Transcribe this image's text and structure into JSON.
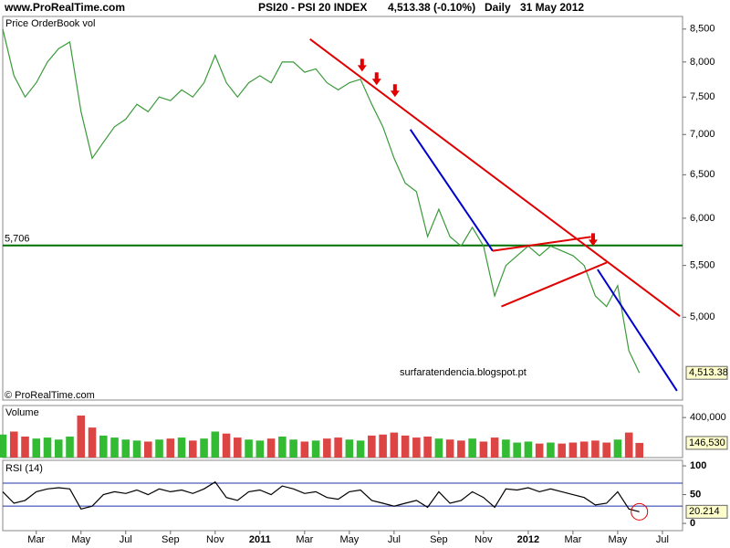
{
  "header": {
    "site": "www.ProRealTime.com",
    "title": "PSI20 - PSI 20 INDEX",
    "quote": "4,513.38 (-0.10%)",
    "period": "Daily",
    "date": "31 May 2012"
  },
  "chart_data": [
    {
      "type": "line",
      "label": "Price OrderBook vol",
      "watermark": "© ProRealTime.com",
      "annotation": "surfaratendencia.blogspot.pt",
      "log_scale": true,
      "color": "#3a9a3a",
      "x": [
        0.5,
        1,
        1.5,
        2,
        2.5,
        3,
        3.5,
        4,
        4.5,
        5,
        5.5,
        6,
        6.5,
        7,
        7.5,
        8,
        8.5,
        9,
        9.5,
        10,
        10.5,
        11,
        11.5,
        12,
        12.5,
        13,
        13.5,
        14,
        14.5,
        15,
        15.5,
        16,
        16.5,
        17,
        17.5,
        18,
        18.5,
        19,
        19.5,
        20,
        20.5,
        21,
        21.5,
        22,
        22.5,
        23,
        23.5,
        24,
        24.5,
        25,
        25.5,
        26,
        26.5,
        27,
        27.5,
        28,
        28.5,
        28.97
      ],
      "values": [
        8500,
        7800,
        7500,
        7700,
        8000,
        8200,
        8300,
        7300,
        6700,
        6900,
        7100,
        7200,
        7400,
        7300,
        7500,
        7450,
        7600,
        7500,
        7700,
        8100,
        7700,
        7500,
        7700,
        7800,
        7700,
        8000,
        8000,
        7850,
        7900,
        7700,
        7600,
        7700,
        7750,
        7400,
        7100,
        6700,
        6400,
        6300,
        5800,
        6100,
        5800,
        5700,
        5900,
        5700,
        5200,
        5500,
        5600,
        5700,
        5600,
        5700,
        5650,
        5600,
        5500,
        5200,
        5100,
        5300,
        4700,
        4513.38
      ],
      "last_value_label": "4,513.38",
      "xlim": [
        0.5,
        30.9
      ],
      "xticks": [
        {
          "value": 2,
          "label": "Mar"
        },
        {
          "value": 4,
          "label": "May"
        },
        {
          "value": 6,
          "label": "Jul"
        },
        {
          "value": 8,
          "label": "Sep"
        },
        {
          "value": 10,
          "label": "Nov"
        },
        {
          "value": 12,
          "label": "2011"
        },
        {
          "value": 14,
          "label": "Mar"
        },
        {
          "value": 16,
          "label": "May"
        },
        {
          "value": 18,
          "label": "Jul"
        },
        {
          "value": 20,
          "label": "Sep"
        },
        {
          "value": 22,
          "label": "Nov"
        },
        {
          "value": 24,
          "label": "2012"
        },
        {
          "value": 26,
          "label": "Mar"
        },
        {
          "value": 28,
          "label": "May"
        },
        {
          "value": 30,
          "label": "Jul"
        }
      ],
      "ylim": [
        4300,
        8700
      ],
      "yticks": [
        {
          "value": 5000,
          "label": "5,000"
        },
        {
          "value": 5500,
          "label": "5,500"
        },
        {
          "value": 6000,
          "label": "6,000"
        },
        {
          "value": 6500,
          "label": "6,500"
        },
        {
          "value": 7000,
          "label": "7,000"
        },
        {
          "value": 7500,
          "label": "7,500"
        },
        {
          "value": 8000,
          "label": "8,000"
        },
        {
          "value": 8500,
          "label": "8,500"
        }
      ],
      "reference_line": {
        "value": 5706,
        "label": "5,706",
        "color": "#007000"
      },
      "trendlines": [
        {
          "x": [
            14.24,
            30.78
          ],
          "y": [
            8344,
            5010
          ],
          "color": "#e00000"
        },
        {
          "x": [
            18.73,
            22.41
          ],
          "y": [
            7065,
            5650
          ],
          "color": "#0000cc"
        },
        {
          "x": [
            27.1,
            30.65
          ],
          "y": [
            5460,
            4366
          ],
          "color": "#0000cc"
        },
        {
          "x": [
            22.41,
            26.8
          ],
          "y": [
            5650,
            5797
          ],
          "color": "#e00000"
        },
        {
          "x": [
            22.8,
            27.51
          ],
          "y": [
            5100,
            5530
          ],
          "color": "#e00000"
        }
      ],
      "arrows": {
        "x": [
          16.57,
          17.22,
          18.04,
          26.9
        ],
        "y": [
          7860,
          7665,
          7500,
          5700
        ],
        "color": "#e00000"
      }
    },
    {
      "type": "bar",
      "label": "Volume",
      "up_color": "#33bb33",
      "down_color": "#dd4444",
      "values": [
        230000,
        260000,
        210000,
        190000,
        200000,
        180000,
        210000,
        420000,
        300000,
        220000,
        200000,
        180000,
        170000,
        160000,
        180000,
        190000,
        200000,
        170000,
        190000,
        260000,
        240000,
        200000,
        180000,
        170000,
        190000,
        210000,
        180000,
        160000,
        170000,
        190000,
        200000,
        180000,
        170000,
        220000,
        230000,
        250000,
        220000,
        200000,
        210000,
        190000,
        180000,
        170000,
        190000,
        160000,
        200000,
        180000,
        150000,
        160000,
        140000,
        150000,
        140000,
        150000,
        160000,
        170000,
        150000,
        180000,
        250000,
        146530
      ],
      "last_value_label": "146,530",
      "ylim": [
        0,
        520000
      ],
      "yticks": [
        {
          "value": 400000,
          "label": "400,000"
        }
      ]
    },
    {
      "type": "line",
      "label": "RSI (14)",
      "color": "#000000",
      "level_color": "#2233aa",
      "values": [
        55,
        35,
        40,
        55,
        60,
        62,
        60,
        25,
        30,
        50,
        55,
        52,
        58,
        50,
        60,
        55,
        58,
        52,
        60,
        72,
        45,
        40,
        55,
        58,
        50,
        65,
        60,
        52,
        55,
        45,
        42,
        55,
        58,
        40,
        35,
        30,
        35,
        40,
        28,
        55,
        35,
        40,
        55,
        45,
        28,
        60,
        58,
        62,
        55,
        60,
        55,
        50,
        45,
        32,
        35,
        55,
        25,
        20.214
      ],
      "last_value_label": "20.214",
      "levels": [
        30,
        70
      ],
      "ylim": [
        -11,
        108
      ],
      "yticks": [
        0,
        50,
        100
      ]
    }
  ]
}
